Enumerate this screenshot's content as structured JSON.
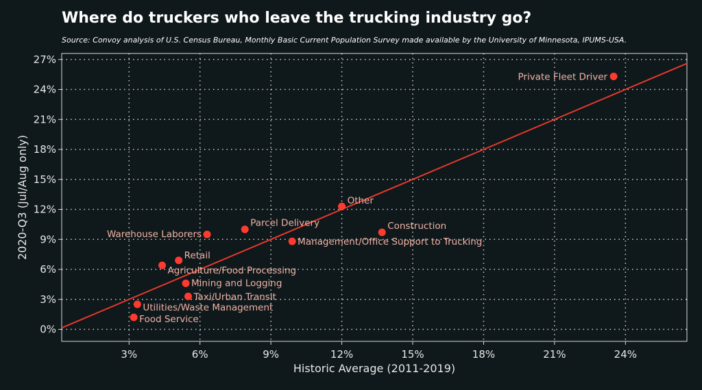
{
  "chart_data": {
    "type": "scatter",
    "title": "Where do truckers who leave the trucking industry go?",
    "subtitle": "Source: Convoy analysis of U.S. Census Bureau, Monthly Basic Current Population Survey made available by the University of Minnesota, IPUMS-USA.",
    "xlabel": "Historic Average (2011-2019)",
    "ylabel": "2020-Q3 (Jul/Aug only)",
    "xlim": [
      0.15,
      26.6
    ],
    "ylim": [
      -1.2,
      27.6
    ],
    "xticks": [
      3,
      6,
      9,
      12,
      15,
      18,
      21,
      24
    ],
    "xtick_labels": [
      "3%",
      "6%",
      "9%",
      "12%",
      "15%",
      "18%",
      "21%",
      "24%"
    ],
    "yticks": [
      0,
      3,
      6,
      9,
      12,
      15,
      18,
      21,
      24,
      27
    ],
    "ytick_labels": [
      "0%",
      "3%",
      "6%",
      "9%",
      "12%",
      "15%",
      "18%",
      "21%",
      "24%",
      "27%"
    ],
    "grid": true,
    "reference_line": {
      "type": "y=x"
    },
    "points": [
      {
        "label": "Private Fleet Driver",
        "x": 23.5,
        "y": 25.3
      },
      {
        "label": "Other",
        "x": 12.0,
        "y": 12.3
      },
      {
        "label": "Construction",
        "x": 13.7,
        "y": 9.7
      },
      {
        "label": "Parcel Delivery",
        "x": 7.9,
        "y": 10.0
      },
      {
        "label": "Warehouse Laborers",
        "x": 6.3,
        "y": 9.5
      },
      {
        "label": "Management/Office Support to Trucking",
        "x": 9.9,
        "y": 8.8
      },
      {
        "label": "Retail",
        "x": 5.1,
        "y": 6.9
      },
      {
        "label": "Agriculture/Food Processing",
        "x": 4.4,
        "y": 6.4
      },
      {
        "label": "Mining and Logging",
        "x": 5.4,
        "y": 4.6
      },
      {
        "label": "Taxi/Urban Transit",
        "x": 5.5,
        "y": 3.3
      },
      {
        "label": "Utilities/Waste Management",
        "x": 3.35,
        "y": 2.5
      },
      {
        "label": "Food Service",
        "x": 3.2,
        "y": 1.2
      }
    ],
    "colors": {
      "background": "#0f181b",
      "point": "#ff3b2f",
      "line": "#e8392b",
      "label": "#f0b4a6",
      "grid": "#d0d0d0"
    }
  }
}
